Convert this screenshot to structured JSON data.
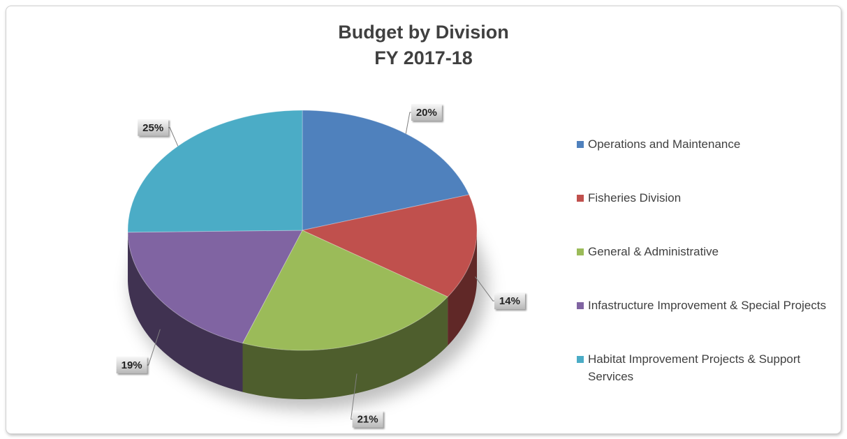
{
  "chart_data": {
    "type": "pie",
    "title": "Budget by Division\nFY 2017-18",
    "categories": [
      "Operations and Maintenance",
      "Fisheries Division",
      "General & Administrative",
      "Infastructure Improvement & Special Projects",
      "Habitat Improvement Projects & Support Services"
    ],
    "values": [
      20,
      14,
      21,
      19,
      25
    ],
    "value_labels": [
      "20%",
      "14%",
      "21%",
      "19%",
      "25%"
    ],
    "colors": [
      "#4f81bd",
      "#c0504d",
      "#9bbb59",
      "#8064a2",
      "#4bacc6"
    ],
    "legend": "right"
  }
}
